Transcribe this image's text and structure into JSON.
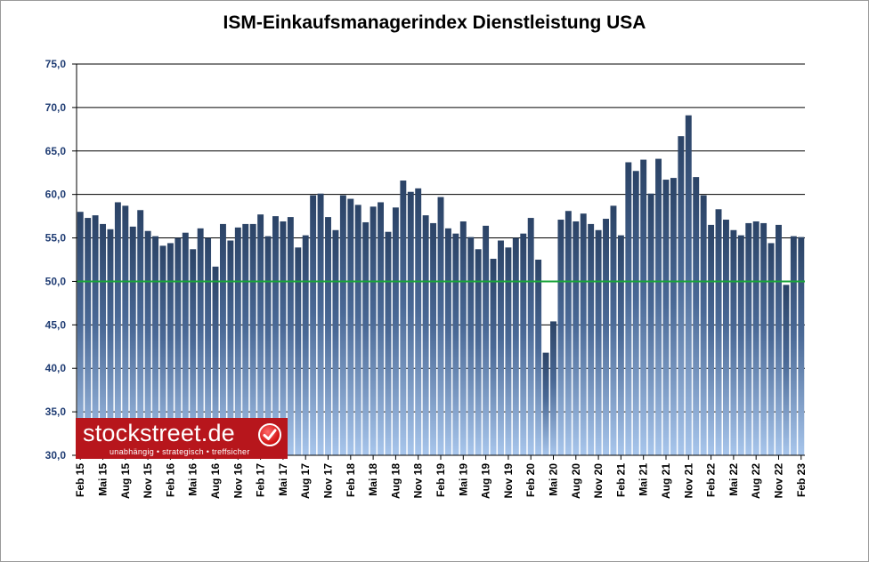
{
  "chart_data": {
    "type": "bar",
    "title": "ISM-Einkaufsmanagerindex Dienstleistung USA",
    "xlabel": "",
    "ylabel": "",
    "ylim": [
      30,
      75
    ],
    "yticks": [
      "30,0",
      "35,0",
      "40,0",
      "45,0",
      "50,0",
      "55,0",
      "60,0",
      "65,0",
      "70,0",
      "75,0"
    ],
    "grid": true,
    "reference_line": 50,
    "colors": {
      "bar_top": "#2b4366",
      "bar_bottom": "#a8c6ec",
      "reference_line": "#1aa33a",
      "tick_label": "#1f3c73"
    },
    "xtick_labels": [
      "Feb 15",
      "Mai 15",
      "Aug 15",
      "Nov 15",
      "Feb 16",
      "Mai 16",
      "Aug 16",
      "Nov 16",
      "Feb 17",
      "Mai 17",
      "Aug 17",
      "Nov 17",
      "Feb 18",
      "Mai 18",
      "Aug 18",
      "Nov 18",
      "Feb 19",
      "Mai 19",
      "Aug 19",
      "Nov 19",
      "Feb 20",
      "Mai 20",
      "Aug 20",
      "Nov 20",
      "Feb 21",
      "Mai 21",
      "Aug 21",
      "Nov 21",
      "Feb 22",
      "Mai 22",
      "Aug 22",
      "Nov 22",
      "Feb 23"
    ],
    "categories": [
      "Feb 15",
      "Mar 15",
      "Apr 15",
      "Mai 15",
      "Jun 15",
      "Jul 15",
      "Aug 15",
      "Sep 15",
      "Okt 15",
      "Nov 15",
      "Dez 15",
      "Jan 16",
      "Feb 16",
      "Mar 16",
      "Apr 16",
      "Mai 16",
      "Jun 16",
      "Jul 16",
      "Aug 16",
      "Sep 16",
      "Okt 16",
      "Nov 16",
      "Dez 16",
      "Jan 17",
      "Feb 17",
      "Mar 17",
      "Apr 17",
      "Mai 17",
      "Jun 17",
      "Jul 17",
      "Aug 17",
      "Sep 17",
      "Okt 17",
      "Nov 17",
      "Dez 17",
      "Jan 18",
      "Feb 18",
      "Mar 18",
      "Apr 18",
      "Mai 18",
      "Jun 18",
      "Jul 18",
      "Aug 18",
      "Sep 18",
      "Okt 18",
      "Nov 18",
      "Dez 18",
      "Jan 19",
      "Feb 19",
      "Mar 19",
      "Apr 19",
      "Mai 19",
      "Jun 19",
      "Jul 19",
      "Aug 19",
      "Sep 19",
      "Okt 19",
      "Nov 19",
      "Dez 19",
      "Jan 20",
      "Feb 20",
      "Mar 20",
      "Apr 20",
      "Mai 20",
      "Jun 20",
      "Jul 20",
      "Aug 20",
      "Sep 20",
      "Okt 20",
      "Nov 20",
      "Dez 20",
      "Jan 21",
      "Feb 21",
      "Mar 21",
      "Apr 21",
      "Mai 21",
      "Jun 21",
      "Jul 21",
      "Aug 21",
      "Sep 21",
      "Okt 21",
      "Nov 21",
      "Dez 21",
      "Jan 22",
      "Feb 22",
      "Mar 22",
      "Apr 22",
      "Mai 22",
      "Jun 22",
      "Jul 22",
      "Aug 22",
      "Sep 22",
      "Okt 22",
      "Nov 22",
      "Dez 22",
      "Jan 23",
      "Feb 23"
    ],
    "values": [
      58.0,
      57.3,
      57.6,
      56.6,
      56.0,
      59.1,
      58.7,
      56.3,
      58.2,
      55.8,
      55.2,
      54.1,
      54.4,
      55.0,
      55.6,
      53.7,
      56.1,
      55.0,
      51.7,
      56.6,
      54.7,
      56.2,
      56.6,
      56.6,
      57.7,
      55.2,
      57.5,
      56.9,
      57.4,
      53.9,
      55.3,
      59.9,
      60.1,
      57.4,
      55.9,
      59.9,
      59.5,
      58.8,
      56.8,
      58.6,
      59.1,
      55.7,
      58.5,
      61.6,
      60.3,
      60.7,
      57.6,
      56.7,
      59.7,
      56.1,
      55.5,
      56.9,
      55.1,
      53.7,
      56.4,
      52.6,
      54.7,
      53.9,
      55.0,
      55.5,
      57.3,
      52.5,
      41.8,
      45.4,
      57.1,
      58.1,
      56.9,
      57.8,
      56.6,
      55.9,
      57.2,
      58.7,
      55.3,
      63.7,
      62.7,
      64.0,
      60.1,
      64.1,
      61.7,
      61.9,
      66.7,
      69.1,
      62.0,
      59.9,
      56.5,
      58.3,
      57.1,
      55.9,
      55.3,
      56.7,
      56.9,
      56.7,
      54.4,
      56.5,
      49.6,
      55.2,
      55.1
    ]
  },
  "logo": {
    "name": "stockstreet.de",
    "slogan": "unabhängig • strategisch • treffsicher"
  }
}
